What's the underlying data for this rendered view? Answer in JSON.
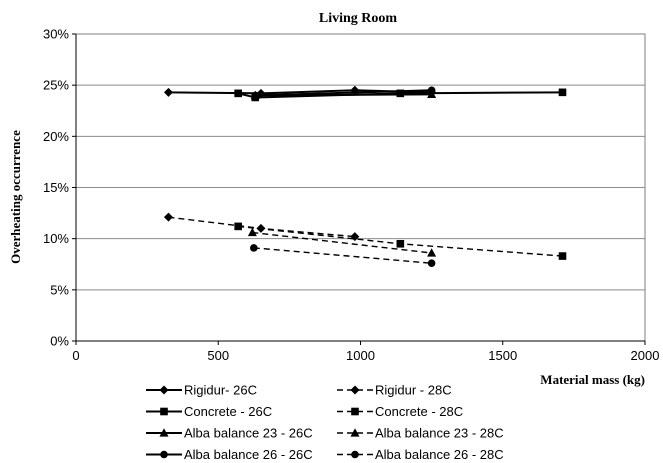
{
  "chart_data": {
    "type": "scatter",
    "title": "Living Room",
    "xlabel": "Material mass (kg)",
    "ylabel": "Overheating occurrence",
    "xlim": [
      0,
      2000
    ],
    "ylim": [
      0,
      30
    ],
    "xticks": [
      "0",
      "500",
      "1000",
      "1500",
      "2000"
    ],
    "yticks": [
      "0%",
      "5%",
      "10%",
      "15%",
      "20%",
      "25%",
      "30%"
    ],
    "grid": "horizontal",
    "legend_position": "bottom",
    "series": [
      {
        "name": "Rigidur- 26C",
        "line": "solid",
        "marker": "diamond",
        "points": [
          [
            325,
            24.3
          ],
          [
            650,
            24.2
          ],
          [
            980,
            24.5
          ],
          [
            1250,
            24.3
          ]
        ]
      },
      {
        "name": "Rigidur - 28C",
        "line": "dashed",
        "marker": "diamond",
        "points": [
          [
            325,
            12.1
          ],
          [
            650,
            11.0
          ],
          [
            980,
            10.2
          ]
        ]
      },
      {
        "name": "Concrete - 26C",
        "line": "solid",
        "marker": "square",
        "points": [
          [
            570,
            24.2
          ],
          [
            630,
            23.8
          ],
          [
            1140,
            24.2
          ],
          [
            1710,
            24.3
          ]
        ]
      },
      {
        "name": "Concrete - 28C",
        "line": "dashed",
        "marker": "square",
        "points": [
          [
            570,
            11.2
          ],
          [
            1140,
            9.5
          ],
          [
            1710,
            8.3
          ]
        ]
      },
      {
        "name": "Alba balance 23 - 26C",
        "line": "solid",
        "marker": "triangle",
        "points": [
          [
            630,
            24.0
          ],
          [
            1250,
            24.1
          ]
        ]
      },
      {
        "name": "Alba balance 23 - 28C",
        "line": "dashed",
        "marker": "triangle",
        "points": [
          [
            620,
            10.6
          ],
          [
            1250,
            8.6
          ]
        ]
      },
      {
        "name": "Alba balance 26 - 26C",
        "line": "solid",
        "marker": "circle",
        "points": [
          [
            630,
            24.0
          ],
          [
            1250,
            24.5
          ]
        ]
      },
      {
        "name": "Alba balance 26 - 28C",
        "line": "dashed",
        "marker": "circle",
        "points": [
          [
            625,
            9.1
          ],
          [
            1250,
            7.6
          ]
        ]
      }
    ]
  }
}
